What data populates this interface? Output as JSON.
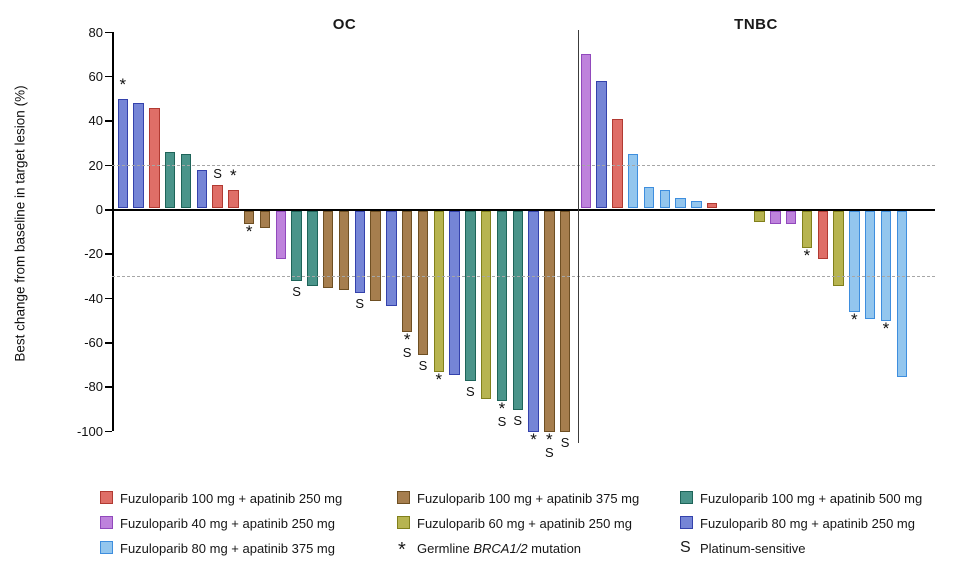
{
  "chart_data": {
    "type": "bar",
    "subtype": "waterfall",
    "ylabel": "Best change from baseline in target lesion (%)",
    "ylim": [
      -100,
      80
    ],
    "yticks": [
      80,
      60,
      40,
      20,
      0,
      -20,
      -40,
      -60,
      -80,
      -100
    ],
    "reference_lines": [
      20,
      -30
    ],
    "grid": "off",
    "marks_meaning": {
      "*": "Germline BRCA1/2 mutation",
      "S": "Platinum-sensitive"
    },
    "palette": {
      "red": {
        "fill": "#DF6E67",
        "stroke": "#B13A32",
        "label": "Fuzuloparib 100 mg + apatinib 250 mg"
      },
      "brown": {
        "fill": "#A67E4E",
        "stroke": "#6E4F23",
        "label": "Fuzuloparib 100 mg + apatinib 375 mg"
      },
      "teal": {
        "fill": "#4A948A",
        "stroke": "#1E6459",
        "label": "Fuzuloparib 100 mg + apatinib 500 mg"
      },
      "purple": {
        "fill": "#BE82DC",
        "stroke": "#9149BC",
        "label": "Fuzuloparib 40 mg + apatinib 250 mg"
      },
      "olive": {
        "fill": "#B7B450",
        "stroke": "#81801B",
        "label": "Fuzuloparib 60 mg + apatinib 250 mg"
      },
      "blue": {
        "fill": "#7585D6",
        "stroke": "#3442AC",
        "label": "Fuzuloparib 80 mg + apatinib 250 mg"
      },
      "lightblue": {
        "fill": "#93C6EE",
        "stroke": "#3E8EDE",
        "label": "Fuzuloparib 80 mg + apatinib 375 mg"
      }
    },
    "panels": [
      {
        "title": "OC",
        "bars": [
          {
            "value": 50,
            "color": "blue",
            "mark": "*"
          },
          {
            "value": 48,
            "color": "blue"
          },
          {
            "value": 46,
            "color": "red"
          },
          {
            "value": 26,
            "color": "teal"
          },
          {
            "value": 25,
            "color": "teal"
          },
          {
            "value": 18,
            "color": "blue"
          },
          {
            "value": 11,
            "color": "red",
            "mark": "S"
          },
          {
            "value": 9,
            "color": "red",
            "mark": "*"
          },
          {
            "value": -6,
            "color": "brown",
            "mark": "*"
          },
          {
            "value": -8,
            "color": "brown"
          },
          {
            "value": -22,
            "color": "purple"
          },
          {
            "value": -32,
            "color": "teal",
            "mark": "S"
          },
          {
            "value": -34,
            "color": "teal"
          },
          {
            "value": -35,
            "color": "brown"
          },
          {
            "value": -36,
            "color": "brown"
          },
          {
            "value": -37,
            "color": "blue",
            "mark": "S"
          },
          {
            "value": -41,
            "color": "brown"
          },
          {
            "value": -43,
            "color": "blue"
          },
          {
            "value": -55,
            "color": "brown",
            "mark": "*S"
          },
          {
            "value": -65,
            "color": "brown",
            "mark": "S"
          },
          {
            "value": -73,
            "color": "olive",
            "mark": "*"
          },
          {
            "value": -74,
            "color": "blue"
          },
          {
            "value": -77,
            "color": "teal",
            "mark": "S"
          },
          {
            "value": -85,
            "color": "olive"
          },
          {
            "value": -86,
            "color": "teal",
            "mark": "*S"
          },
          {
            "value": -90,
            "color": "teal",
            "mark": "S"
          },
          {
            "value": -100,
            "color": "blue",
            "mark": "*"
          },
          {
            "value": -100,
            "color": "brown",
            "mark": "*S"
          },
          {
            "value": -100,
            "color": "brown",
            "mark": "S"
          }
        ]
      },
      {
        "title": "TNBC",
        "bars": [
          {
            "value": 70,
            "color": "purple"
          },
          {
            "value": 58,
            "color": "blue"
          },
          {
            "value": 41,
            "color": "red"
          },
          {
            "value": 25,
            "color": "lightblue"
          },
          {
            "value": 10,
            "color": "lightblue"
          },
          {
            "value": 9,
            "color": "lightblue"
          },
          {
            "value": 5,
            "color": "lightblue"
          },
          {
            "value": 4,
            "color": "lightblue"
          },
          {
            "value": 3,
            "color": "red"
          },
          null,
          null,
          {
            "value": -5,
            "color": "olive"
          },
          {
            "value": -6,
            "color": "purple"
          },
          {
            "value": -6,
            "color": "purple"
          },
          {
            "value": -17,
            "color": "olive",
            "mark": "*"
          },
          {
            "value": -22,
            "color": "red"
          },
          {
            "value": -34,
            "color": "olive"
          },
          {
            "value": -46,
            "color": "lightblue",
            "mark": "*"
          },
          {
            "value": -49,
            "color": "lightblue"
          },
          {
            "value": -50,
            "color": "lightblue",
            "mark": "*"
          },
          {
            "value": -75,
            "color": "lightblue"
          }
        ]
      }
    ],
    "legend": [
      {
        "col": 0,
        "row": 0,
        "swatch": "red",
        "label": "Fuzuloparib 100 mg + apatinib 250 mg"
      },
      {
        "col": 0,
        "row": 1,
        "swatch": "purple",
        "label": "Fuzuloparib 40 mg + apatinib 250 mg"
      },
      {
        "col": 0,
        "row": 2,
        "swatch": "lightblue",
        "label": "Fuzuloparib 80 mg + apatinib 375 mg"
      },
      {
        "col": 1,
        "row": 0,
        "swatch": "brown",
        "label": "Fuzuloparib 100 mg + apatinib 375 mg"
      },
      {
        "col": 1,
        "row": 1,
        "swatch": "olive",
        "label": "Fuzuloparib 60 mg + apatinib 250 mg"
      },
      {
        "col": 1,
        "row": 2,
        "symbol": "*",
        "label_prefix": "Germline ",
        "label_italic": "BRCA1/2",
        "label_suffix": " mutation"
      },
      {
        "col": 2,
        "row": 0,
        "swatch": "teal",
        "label": "Fuzuloparib 100 mg + apatinib 500 mg"
      },
      {
        "col": 2,
        "row": 1,
        "swatch": "blue",
        "label": "Fuzuloparib 80 mg + apatinib 250 mg"
      },
      {
        "col": 2,
        "row": 2,
        "symbol": "S",
        "label": "Platinum-sensitive"
      }
    ]
  }
}
